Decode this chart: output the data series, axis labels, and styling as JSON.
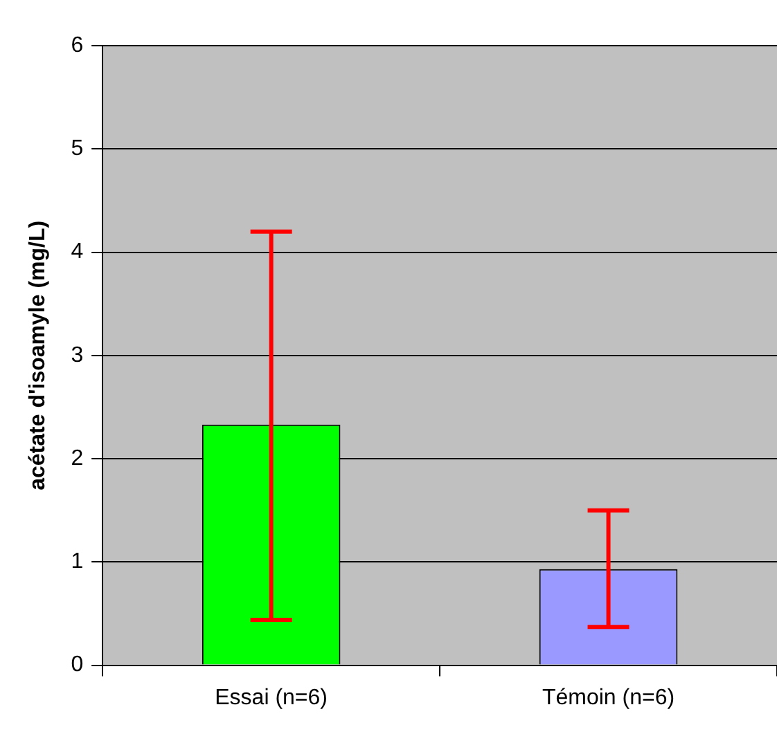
{
  "chart_data": {
    "type": "bar",
    "ylabel": "acétate d'isoamyle (mg/L)",
    "categories": [
      "Essai (n=6)",
      "Témoin (n=6)"
    ],
    "values": [
      2.33,
      0.93
    ],
    "colors": [
      "#00ff00",
      "#9999ff"
    ],
    "errors": [
      [
        0.44,
        4.2
      ],
      [
        0.37,
        1.5
      ]
    ],
    "ylim": [
      0,
      6
    ],
    "yticks": [
      0,
      1,
      2,
      3,
      4,
      5,
      6
    ],
    "grid": "y",
    "legend": false
  }
}
